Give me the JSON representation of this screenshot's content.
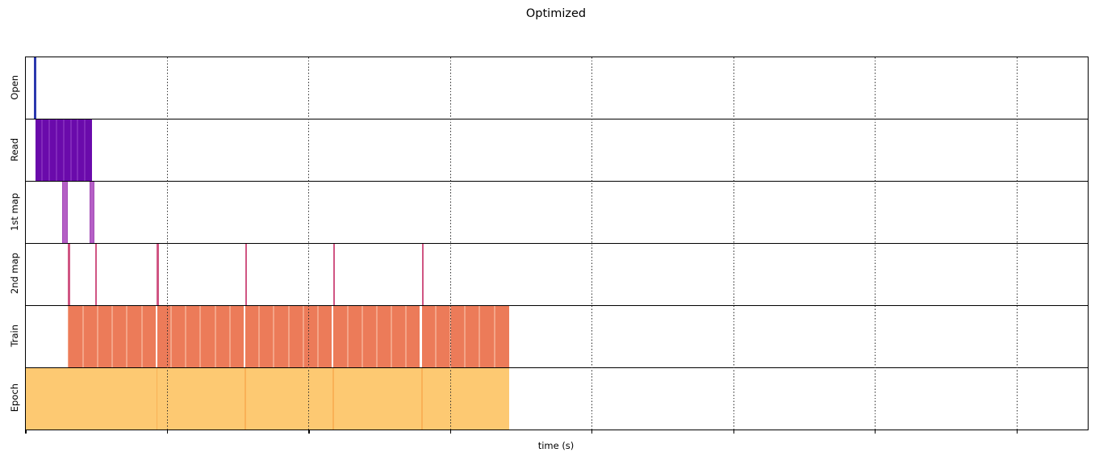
{
  "chart_data": {
    "type": "timeline",
    "title": "Optimized",
    "xlabel": "time (s)",
    "xlim": [
      0,
      7.5
    ],
    "xticks": [
      0,
      1,
      2,
      3,
      4,
      5,
      6,
      7
    ],
    "xtick_labels_visible": false,
    "grid": {
      "axis": "x",
      "style": "dotted",
      "color": "#2b2b2b",
      "drawn_above_bars": true
    },
    "rows": [
      {
        "label": "Open",
        "color": "#2b38ae",
        "intervals": [
          {
            "start": 0.057,
            "end": 0.074
          }
        ]
      },
      {
        "label": "Read",
        "color": "#6a0aab",
        "intervals": [
          {
            "start": 0.066,
            "end": 0.468,
            "segments": 8,
            "separator_color": "#8128ba"
          }
        ]
      },
      {
        "label": "1st map",
        "color": "#b55fc6",
        "edge_color": "#a44db7",
        "intervals": [
          {
            "start": 0.259,
            "end": 0.294
          },
          {
            "start": 0.453,
            "end": 0.487
          }
        ]
      },
      {
        "label": "2nd map",
        "color": "#d05583",
        "intervals": [
          {
            "start": 0.299,
            "end": 0.312
          },
          {
            "start": 0.49,
            "end": 0.503
          },
          {
            "start": 0.926,
            "end": 0.939
          },
          {
            "start": 1.548,
            "end": 1.561
          },
          {
            "start": 2.169,
            "end": 2.182
          },
          {
            "start": 2.796,
            "end": 2.809
          }
        ]
      },
      {
        "label": "Train",
        "color": "#ec7b59",
        "intervals": [
          {
            "start": 0.299,
            "end": 3.413,
            "segments": 30,
            "separator_color": "#f4a487",
            "start_stripe": true,
            "major_every": 6,
            "major_color": "#ffffff",
            "section_breaks": [
              0.926,
              1.548,
              2.169,
              2.796
            ]
          }
        ]
      },
      {
        "label": "Epoch",
        "color": "#fdc972",
        "intervals": [
          {
            "start": 0.0,
            "end": 3.413,
            "breaks": [
              0.926,
              1.548,
              2.169,
              2.796
            ],
            "break_color": "#f9b156"
          }
        ]
      }
    ]
  }
}
